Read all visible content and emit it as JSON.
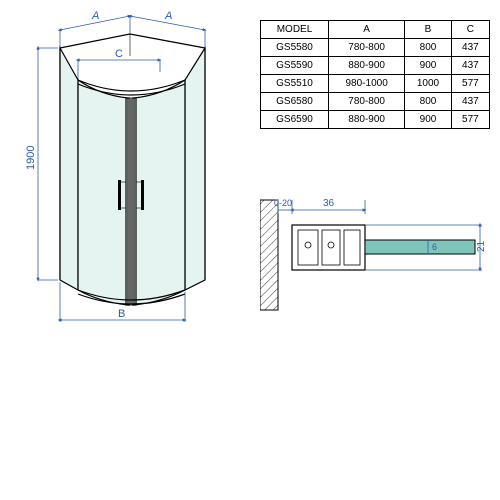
{
  "table": {
    "headers": [
      "MODEL",
      "A",
      "B",
      "C"
    ],
    "rows": [
      [
        "GS5580",
        "780-800",
        "800",
        "437"
      ],
      [
        "GS5590",
        "880-900",
        "900",
        "437"
      ],
      [
        "GS5510",
        "980-1000",
        "1000",
        "577"
      ],
      [
        "GS6580",
        "780-800",
        "800",
        "437"
      ],
      [
        "GS6590",
        "880-900",
        "900",
        "577"
      ]
    ],
    "col_widths": [
      "28%",
      "28%",
      "22%",
      "22%"
    ]
  },
  "main_diagram": {
    "label_A_left": "A",
    "label_A_right": "A",
    "label_C": "C",
    "label_B": "B",
    "label_height": "1900",
    "dim_color": "#2a5caa",
    "glass_color": "#d4ede8",
    "frame_color": "#000000"
  },
  "section_diagram": {
    "dim_gap": "0-20",
    "dim_width": "36",
    "dim_height": "21",
    "dim_inner": "6",
    "dim_color": "#2a5caa",
    "hatch_color": "#000000",
    "profile_fill": "#80c5bb"
  },
  "styling": {
    "font_size_table": 10,
    "font_size_dim": 11,
    "background": "#ffffff"
  }
}
